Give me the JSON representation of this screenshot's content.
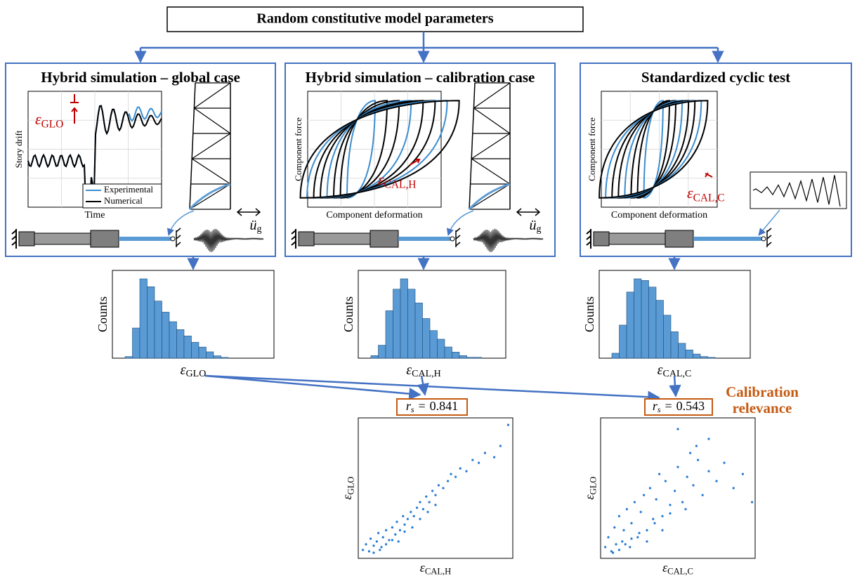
{
  "header": {
    "title": "Random constitutive model parameters"
  },
  "panels": [
    {
      "title": "Hybrid simulation – global case",
      "y_label": "Story drift",
      "x_label": "Time",
      "legend": [
        "Experimental",
        "Numerical"
      ],
      "error": {
        "symbol": "ε",
        "sub": "GLO"
      },
      "excitation": {
        "symbol": "ü",
        "sub": "g"
      }
    },
    {
      "title": "Hybrid simulation – calibration case",
      "y_label": "Component force",
      "x_label": "Component deformation",
      "error": {
        "symbol": "ε",
        "sub": "CAL,H"
      },
      "excitation": {
        "symbol": "ü",
        "sub": "g"
      }
    },
    {
      "title": "Standardized cyclic test",
      "y_label": "Component force",
      "x_label": "Component deformation",
      "error": {
        "symbol": "ε",
        "sub": "CAL,C"
      }
    }
  ],
  "histograms": [
    {
      "y_label": "Counts",
      "x_label": {
        "symbol": "ε",
        "sub": "GLO"
      },
      "counts": [
        2,
        38,
        100,
        90,
        72,
        58,
        46,
        36,
        28,
        20,
        14,
        8,
        3,
        1
      ]
    },
    {
      "y_label": "Counts",
      "x_label": {
        "symbol": "ε",
        "sub": "CAL,H"
      },
      "counts": [
        3,
        15,
        55,
        80,
        92,
        80,
        64,
        46,
        32,
        22,
        13,
        7,
        3,
        1,
        1
      ]
    },
    {
      "y_label": "Counts",
      "x_label": {
        "symbol": "ε",
        "sub": "CAL,C"
      },
      "counts": [
        6,
        40,
        80,
        96,
        94,
        86,
        70,
        52,
        32,
        18,
        10,
        5,
        2,
        1
      ]
    }
  ],
  "correlations": [
    {
      "symbol": "r",
      "sub": "s",
      "relation": "=",
      "value": 0.841
    },
    {
      "symbol": "r",
      "sub": "s",
      "relation": "=",
      "value": 0.543
    }
  ],
  "calibration_label": [
    "Calibration",
    "relevance"
  ],
  "scatters": [
    {
      "x_label": {
        "symbol": "ε",
        "sub": "CAL,H"
      },
      "y_label": {
        "symbol": "ε",
        "sub": "GLO"
      },
      "x": [
        0.03,
        0.05,
        0.07,
        0.08,
        0.1,
        0.12,
        0.13,
        0.15,
        0.16,
        0.18,
        0.2,
        0.22,
        0.24,
        0.25,
        0.27,
        0.29,
        0.3,
        0.32,
        0.34,
        0.36,
        0.38,
        0.4,
        0.42,
        0.44,
        0.46,
        0.48,
        0.5,
        0.52,
        0.55,
        0.58,
        0.6,
        0.63,
        0.66,
        0.7,
        0.74,
        0.78,
        0.82,
        0.88,
        0.92,
        0.97,
        0.1,
        0.14,
        0.18,
        0.22,
        0.26,
        0.3,
        0.35,
        0.4,
        0.45,
        0.5
      ],
      "y": [
        0.06,
        0.1,
        0.05,
        0.14,
        0.09,
        0.12,
        0.18,
        0.08,
        0.15,
        0.2,
        0.13,
        0.22,
        0.17,
        0.26,
        0.2,
        0.3,
        0.24,
        0.28,
        0.33,
        0.3,
        0.36,
        0.4,
        0.35,
        0.44,
        0.4,
        0.48,
        0.45,
        0.52,
        0.5,
        0.55,
        0.6,
        0.58,
        0.64,
        0.62,
        0.7,
        0.68,
        0.75,
        0.72,
        0.8,
        0.95,
        0.04,
        0.06,
        0.1,
        0.13,
        0.12,
        0.19,
        0.22,
        0.28,
        0.33,
        0.38
      ]
    },
    {
      "x_label": {
        "symbol": "ε",
        "sub": "CAL,C"
      },
      "y_label": {
        "symbol": "ε",
        "sub": "GLO"
      },
      "x": [
        0.03,
        0.05,
        0.07,
        0.09,
        0.1,
        0.12,
        0.14,
        0.15,
        0.17,
        0.19,
        0.2,
        0.22,
        0.24,
        0.26,
        0.28,
        0.3,
        0.32,
        0.34,
        0.36,
        0.38,
        0.4,
        0.42,
        0.45,
        0.48,
        0.5,
        0.53,
        0.56,
        0.6,
        0.63,
        0.66,
        0.7,
        0.75,
        0.8,
        0.86,
        0.92,
        0.98,
        0.08,
        0.12,
        0.16,
        0.2,
        0.25,
        0.3,
        0.35,
        0.4,
        0.45,
        0.55,
        0.62,
        0.5,
        0.58,
        0.7
      ],
      "y": [
        0.08,
        0.15,
        0.05,
        0.22,
        0.1,
        0.3,
        0.12,
        0.2,
        0.35,
        0.08,
        0.25,
        0.4,
        0.15,
        0.33,
        0.45,
        0.2,
        0.5,
        0.28,
        0.42,
        0.6,
        0.3,
        0.55,
        0.38,
        0.48,
        0.65,
        0.4,
        0.58,
        0.52,
        0.7,
        0.45,
        0.62,
        0.55,
        0.68,
        0.5,
        0.6,
        0.4,
        0.04,
        0.06,
        0.1,
        0.14,
        0.18,
        0.12,
        0.25,
        0.2,
        0.32,
        0.35,
        0.8,
        0.92,
        0.75,
        0.85
      ]
    }
  ]
}
